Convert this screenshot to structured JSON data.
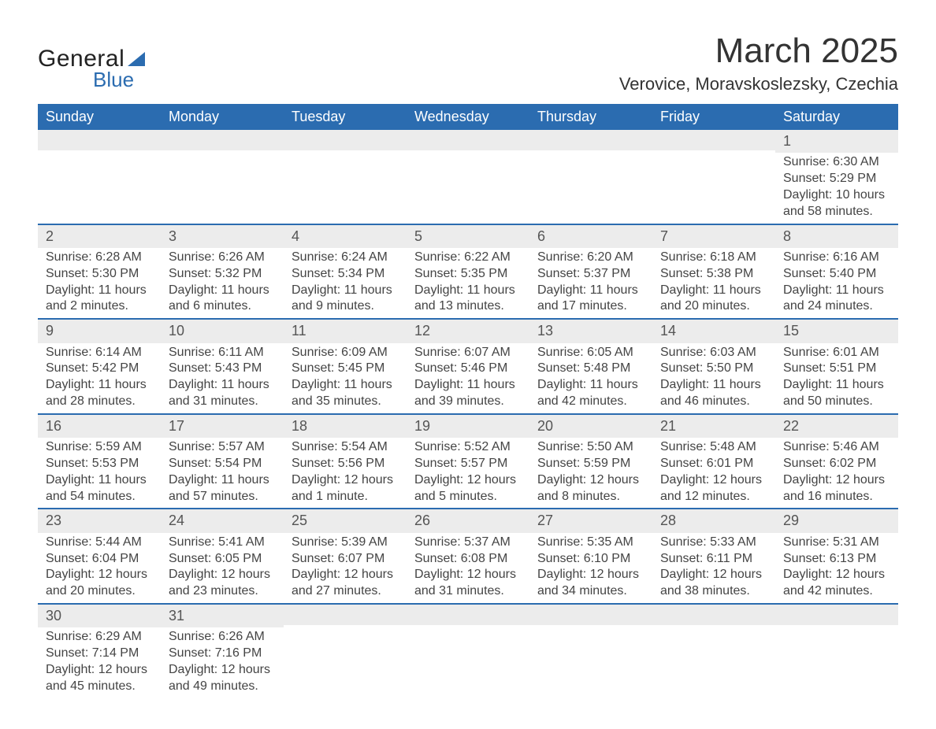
{
  "logo": {
    "text_general": "General",
    "text_blue": "Blue"
  },
  "title": "March 2025",
  "location": "Verovice, Moravskoslezsky, Czechia",
  "colors": {
    "header_bg": "#2b6cb0",
    "header_text": "#ffffff",
    "daynum_bg": "#ececec",
    "daynum_text": "#555555",
    "body_text": "#444444",
    "row_divider": "#2b6cb0",
    "page_bg": "#ffffff",
    "title_text": "#333333"
  },
  "typography": {
    "title_fontsize": 44,
    "location_fontsize": 22,
    "header_fontsize": 18,
    "daynum_fontsize": 18,
    "cell_fontsize": 16,
    "font_family": "Arial"
  },
  "layout": {
    "columns": 7,
    "rows": 6,
    "first_day_column_index": 6
  },
  "day_headers": [
    "Sunday",
    "Monday",
    "Tuesday",
    "Wednesday",
    "Thursday",
    "Friday",
    "Saturday"
  ],
  "weeks": [
    [
      null,
      null,
      null,
      null,
      null,
      null,
      {
        "num": "1",
        "sunrise": "Sunrise: 6:30 AM",
        "sunset": "Sunset: 5:29 PM",
        "daylight": "Daylight: 10 hours and 58 minutes."
      }
    ],
    [
      {
        "num": "2",
        "sunrise": "Sunrise: 6:28 AM",
        "sunset": "Sunset: 5:30 PM",
        "daylight": "Daylight: 11 hours and 2 minutes."
      },
      {
        "num": "3",
        "sunrise": "Sunrise: 6:26 AM",
        "sunset": "Sunset: 5:32 PM",
        "daylight": "Daylight: 11 hours and 6 minutes."
      },
      {
        "num": "4",
        "sunrise": "Sunrise: 6:24 AM",
        "sunset": "Sunset: 5:34 PM",
        "daylight": "Daylight: 11 hours and 9 minutes."
      },
      {
        "num": "5",
        "sunrise": "Sunrise: 6:22 AM",
        "sunset": "Sunset: 5:35 PM",
        "daylight": "Daylight: 11 hours and 13 minutes."
      },
      {
        "num": "6",
        "sunrise": "Sunrise: 6:20 AM",
        "sunset": "Sunset: 5:37 PM",
        "daylight": "Daylight: 11 hours and 17 minutes."
      },
      {
        "num": "7",
        "sunrise": "Sunrise: 6:18 AM",
        "sunset": "Sunset: 5:38 PM",
        "daylight": "Daylight: 11 hours and 20 minutes."
      },
      {
        "num": "8",
        "sunrise": "Sunrise: 6:16 AM",
        "sunset": "Sunset: 5:40 PM",
        "daylight": "Daylight: 11 hours and 24 minutes."
      }
    ],
    [
      {
        "num": "9",
        "sunrise": "Sunrise: 6:14 AM",
        "sunset": "Sunset: 5:42 PM",
        "daylight": "Daylight: 11 hours and 28 minutes."
      },
      {
        "num": "10",
        "sunrise": "Sunrise: 6:11 AM",
        "sunset": "Sunset: 5:43 PM",
        "daylight": "Daylight: 11 hours and 31 minutes."
      },
      {
        "num": "11",
        "sunrise": "Sunrise: 6:09 AM",
        "sunset": "Sunset: 5:45 PM",
        "daylight": "Daylight: 11 hours and 35 minutes."
      },
      {
        "num": "12",
        "sunrise": "Sunrise: 6:07 AM",
        "sunset": "Sunset: 5:46 PM",
        "daylight": "Daylight: 11 hours and 39 minutes."
      },
      {
        "num": "13",
        "sunrise": "Sunrise: 6:05 AM",
        "sunset": "Sunset: 5:48 PM",
        "daylight": "Daylight: 11 hours and 42 minutes."
      },
      {
        "num": "14",
        "sunrise": "Sunrise: 6:03 AM",
        "sunset": "Sunset: 5:50 PM",
        "daylight": "Daylight: 11 hours and 46 minutes."
      },
      {
        "num": "15",
        "sunrise": "Sunrise: 6:01 AM",
        "sunset": "Sunset: 5:51 PM",
        "daylight": "Daylight: 11 hours and 50 minutes."
      }
    ],
    [
      {
        "num": "16",
        "sunrise": "Sunrise: 5:59 AM",
        "sunset": "Sunset: 5:53 PM",
        "daylight": "Daylight: 11 hours and 54 minutes."
      },
      {
        "num": "17",
        "sunrise": "Sunrise: 5:57 AM",
        "sunset": "Sunset: 5:54 PM",
        "daylight": "Daylight: 11 hours and 57 minutes."
      },
      {
        "num": "18",
        "sunrise": "Sunrise: 5:54 AM",
        "sunset": "Sunset: 5:56 PM",
        "daylight": "Daylight: 12 hours and 1 minute."
      },
      {
        "num": "19",
        "sunrise": "Sunrise: 5:52 AM",
        "sunset": "Sunset: 5:57 PM",
        "daylight": "Daylight: 12 hours and 5 minutes."
      },
      {
        "num": "20",
        "sunrise": "Sunrise: 5:50 AM",
        "sunset": "Sunset: 5:59 PM",
        "daylight": "Daylight: 12 hours and 8 minutes."
      },
      {
        "num": "21",
        "sunrise": "Sunrise: 5:48 AM",
        "sunset": "Sunset: 6:01 PM",
        "daylight": "Daylight: 12 hours and 12 minutes."
      },
      {
        "num": "22",
        "sunrise": "Sunrise: 5:46 AM",
        "sunset": "Sunset: 6:02 PM",
        "daylight": "Daylight: 12 hours and 16 minutes."
      }
    ],
    [
      {
        "num": "23",
        "sunrise": "Sunrise: 5:44 AM",
        "sunset": "Sunset: 6:04 PM",
        "daylight": "Daylight: 12 hours and 20 minutes."
      },
      {
        "num": "24",
        "sunrise": "Sunrise: 5:41 AM",
        "sunset": "Sunset: 6:05 PM",
        "daylight": "Daylight: 12 hours and 23 minutes."
      },
      {
        "num": "25",
        "sunrise": "Sunrise: 5:39 AM",
        "sunset": "Sunset: 6:07 PM",
        "daylight": "Daylight: 12 hours and 27 minutes."
      },
      {
        "num": "26",
        "sunrise": "Sunrise: 5:37 AM",
        "sunset": "Sunset: 6:08 PM",
        "daylight": "Daylight: 12 hours and 31 minutes."
      },
      {
        "num": "27",
        "sunrise": "Sunrise: 5:35 AM",
        "sunset": "Sunset: 6:10 PM",
        "daylight": "Daylight: 12 hours and 34 minutes."
      },
      {
        "num": "28",
        "sunrise": "Sunrise: 5:33 AM",
        "sunset": "Sunset: 6:11 PM",
        "daylight": "Daylight: 12 hours and 38 minutes."
      },
      {
        "num": "29",
        "sunrise": "Sunrise: 5:31 AM",
        "sunset": "Sunset: 6:13 PM",
        "daylight": "Daylight: 12 hours and 42 minutes."
      }
    ],
    [
      {
        "num": "30",
        "sunrise": "Sunrise: 6:29 AM",
        "sunset": "Sunset: 7:14 PM",
        "daylight": "Daylight: 12 hours and 45 minutes."
      },
      {
        "num": "31",
        "sunrise": "Sunrise: 6:26 AM",
        "sunset": "Sunset: 7:16 PM",
        "daylight": "Daylight: 12 hours and 49 minutes."
      },
      null,
      null,
      null,
      null,
      null
    ]
  ]
}
